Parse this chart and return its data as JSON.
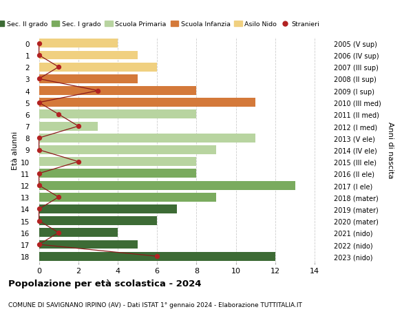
{
  "ages": [
    18,
    17,
    16,
    15,
    14,
    13,
    12,
    11,
    10,
    9,
    8,
    7,
    6,
    5,
    4,
    3,
    2,
    1,
    0
  ],
  "right_labels": [
    "2005 (V sup)",
    "2006 (IV sup)",
    "2007 (III sup)",
    "2008 (II sup)",
    "2009 (I sup)",
    "2010 (III med)",
    "2011 (II med)",
    "2012 (I med)",
    "2013 (V ele)",
    "2014 (IV ele)",
    "2015 (III ele)",
    "2016 (II ele)",
    "2017 (I ele)",
    "2018 (mater)",
    "2019 (mater)",
    "2020 (mater)",
    "2021 (nido)",
    "2022 (nido)",
    "2023 (nido)"
  ],
  "bar_values": [
    12,
    5,
    4,
    6,
    7,
    9,
    13,
    8,
    8,
    9,
    11,
    3,
    8,
    11,
    8,
    5,
    6,
    5,
    4
  ],
  "bar_colors": [
    "#3d6b35",
    "#3d6b35",
    "#3d6b35",
    "#3d6b35",
    "#3d6b35",
    "#7aab5e",
    "#7aab5e",
    "#7aab5e",
    "#b8d4a0",
    "#b8d4a0",
    "#b8d4a0",
    "#b8d4a0",
    "#b8d4a0",
    "#d4793a",
    "#d4793a",
    "#d4793a",
    "#f0d080",
    "#f0d080",
    "#f0d080"
  ],
  "stranieri_values": [
    6,
    0,
    1,
    0,
    0,
    1,
    0,
    0,
    2,
    0,
    0,
    2,
    1,
    0,
    3,
    0,
    1,
    0,
    0
  ],
  "legend_labels": [
    "Sec. II grado",
    "Sec. I grado",
    "Scuola Primaria",
    "Scuola Infanzia",
    "Asilo Nido",
    "Stranieri"
  ],
  "legend_colors": [
    "#3d6b35",
    "#7aab5e",
    "#b8d4a0",
    "#d4793a",
    "#f0d080",
    "#b22222"
  ],
  "title": "Popolazione per età scolastica - 2024",
  "subtitle": "COMUNE DI SAVIGNANO IRPINO (AV) - Dati ISTAT 1° gennaio 2024 - Elaborazione TUTTITALIA.IT",
  "ylabel_left": "Età alunni",
  "ylabel_right": "Anni di nascita",
  "xlim": [
    -0.3,
    14.8
  ],
  "background_color": "#ffffff",
  "grid_color": "#cccccc"
}
